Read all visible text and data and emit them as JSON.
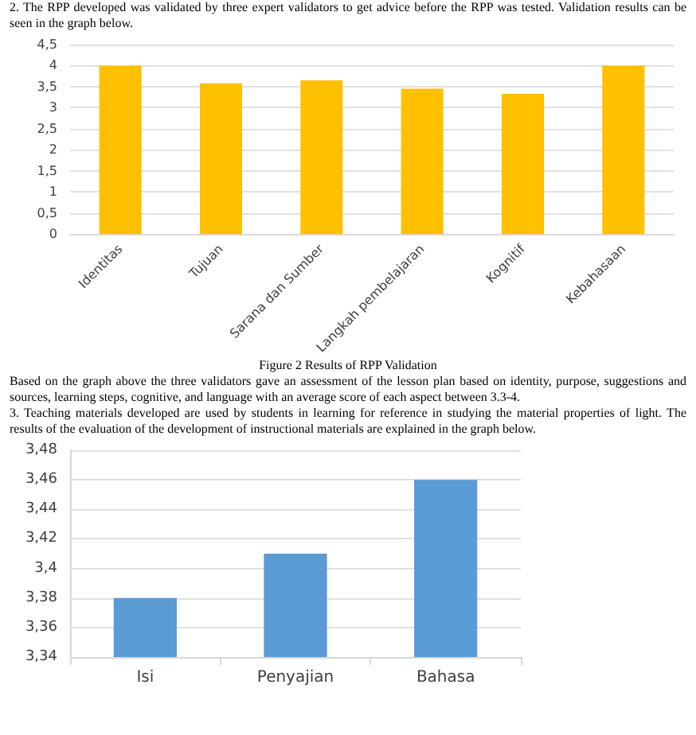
{
  "chart_data": [
    {
      "type": "bar",
      "categories": [
        "Identitas",
        "Tujuan",
        "Sarana dan Sumber",
        "Langkah pembelajaran",
        "Kognitif",
        "Kebahasaan"
      ],
      "values": [
        4,
        3.58,
        3.65,
        3.45,
        3.33,
        4
      ],
      "color": "#ffc000",
      "ylim": [
        0,
        4.5
      ],
      "yticks": [
        0,
        {
          "value": 0.5,
          "label": "0,5"
        },
        1,
        {
          "value": 1.5,
          "label": "1,5"
        },
        2,
        {
          "value": 2.5,
          "label": "2,5"
        },
        3,
        {
          "value": 3.5,
          "label": "3,5"
        },
        4,
        {
          "value": 4.5,
          "label": "4,5"
        }
      ],
      "grid": "y",
      "annotations": [
        "2.    The RPP developed was validated by three expert validators to get advice before the RPP was tested. Validation results can be seen in the graph below.",
        "Figure 2 Results of RPP Validation",
        "Based on the graph above the three validators gave an assessment of the lesson plan based on identity, purpose, suggestions and sources, learning steps, cognitive, and language with an average score of each aspect between 3.3-4."
      ]
    },
    {
      "type": "bar",
      "categories": [
        "Isi",
        "Penyajian",
        "Bahasa"
      ],
      "values": [
        3.38,
        3.41,
        3.46
      ],
      "color": "#5b9bd5",
      "ylim": [
        3.34,
        3.48
      ],
      "yticks": [
        {
          "value": 3.34,
          "label": "3,34"
        },
        {
          "value": 3.36,
          "label": "3,36"
        },
        {
          "value": 3.38,
          "label": "3,38"
        },
        {
          "value": 3.4,
          "label": "3,4"
        },
        {
          "value": 3.42,
          "label": "3,42"
        },
        {
          "value": 3.44,
          "label": "3,44"
        },
        {
          "value": 3.46,
          "label": "3,46"
        },
        {
          "value": 3.48,
          "label": "3,48"
        }
      ],
      "grid": "y",
      "annotations": [
        "3.    Teaching materials developed are used by students in learning for reference in studying the material properties of light. The results of the evaluation of the development of instructional materials are explained in the graph below."
      ]
    }
  ]
}
